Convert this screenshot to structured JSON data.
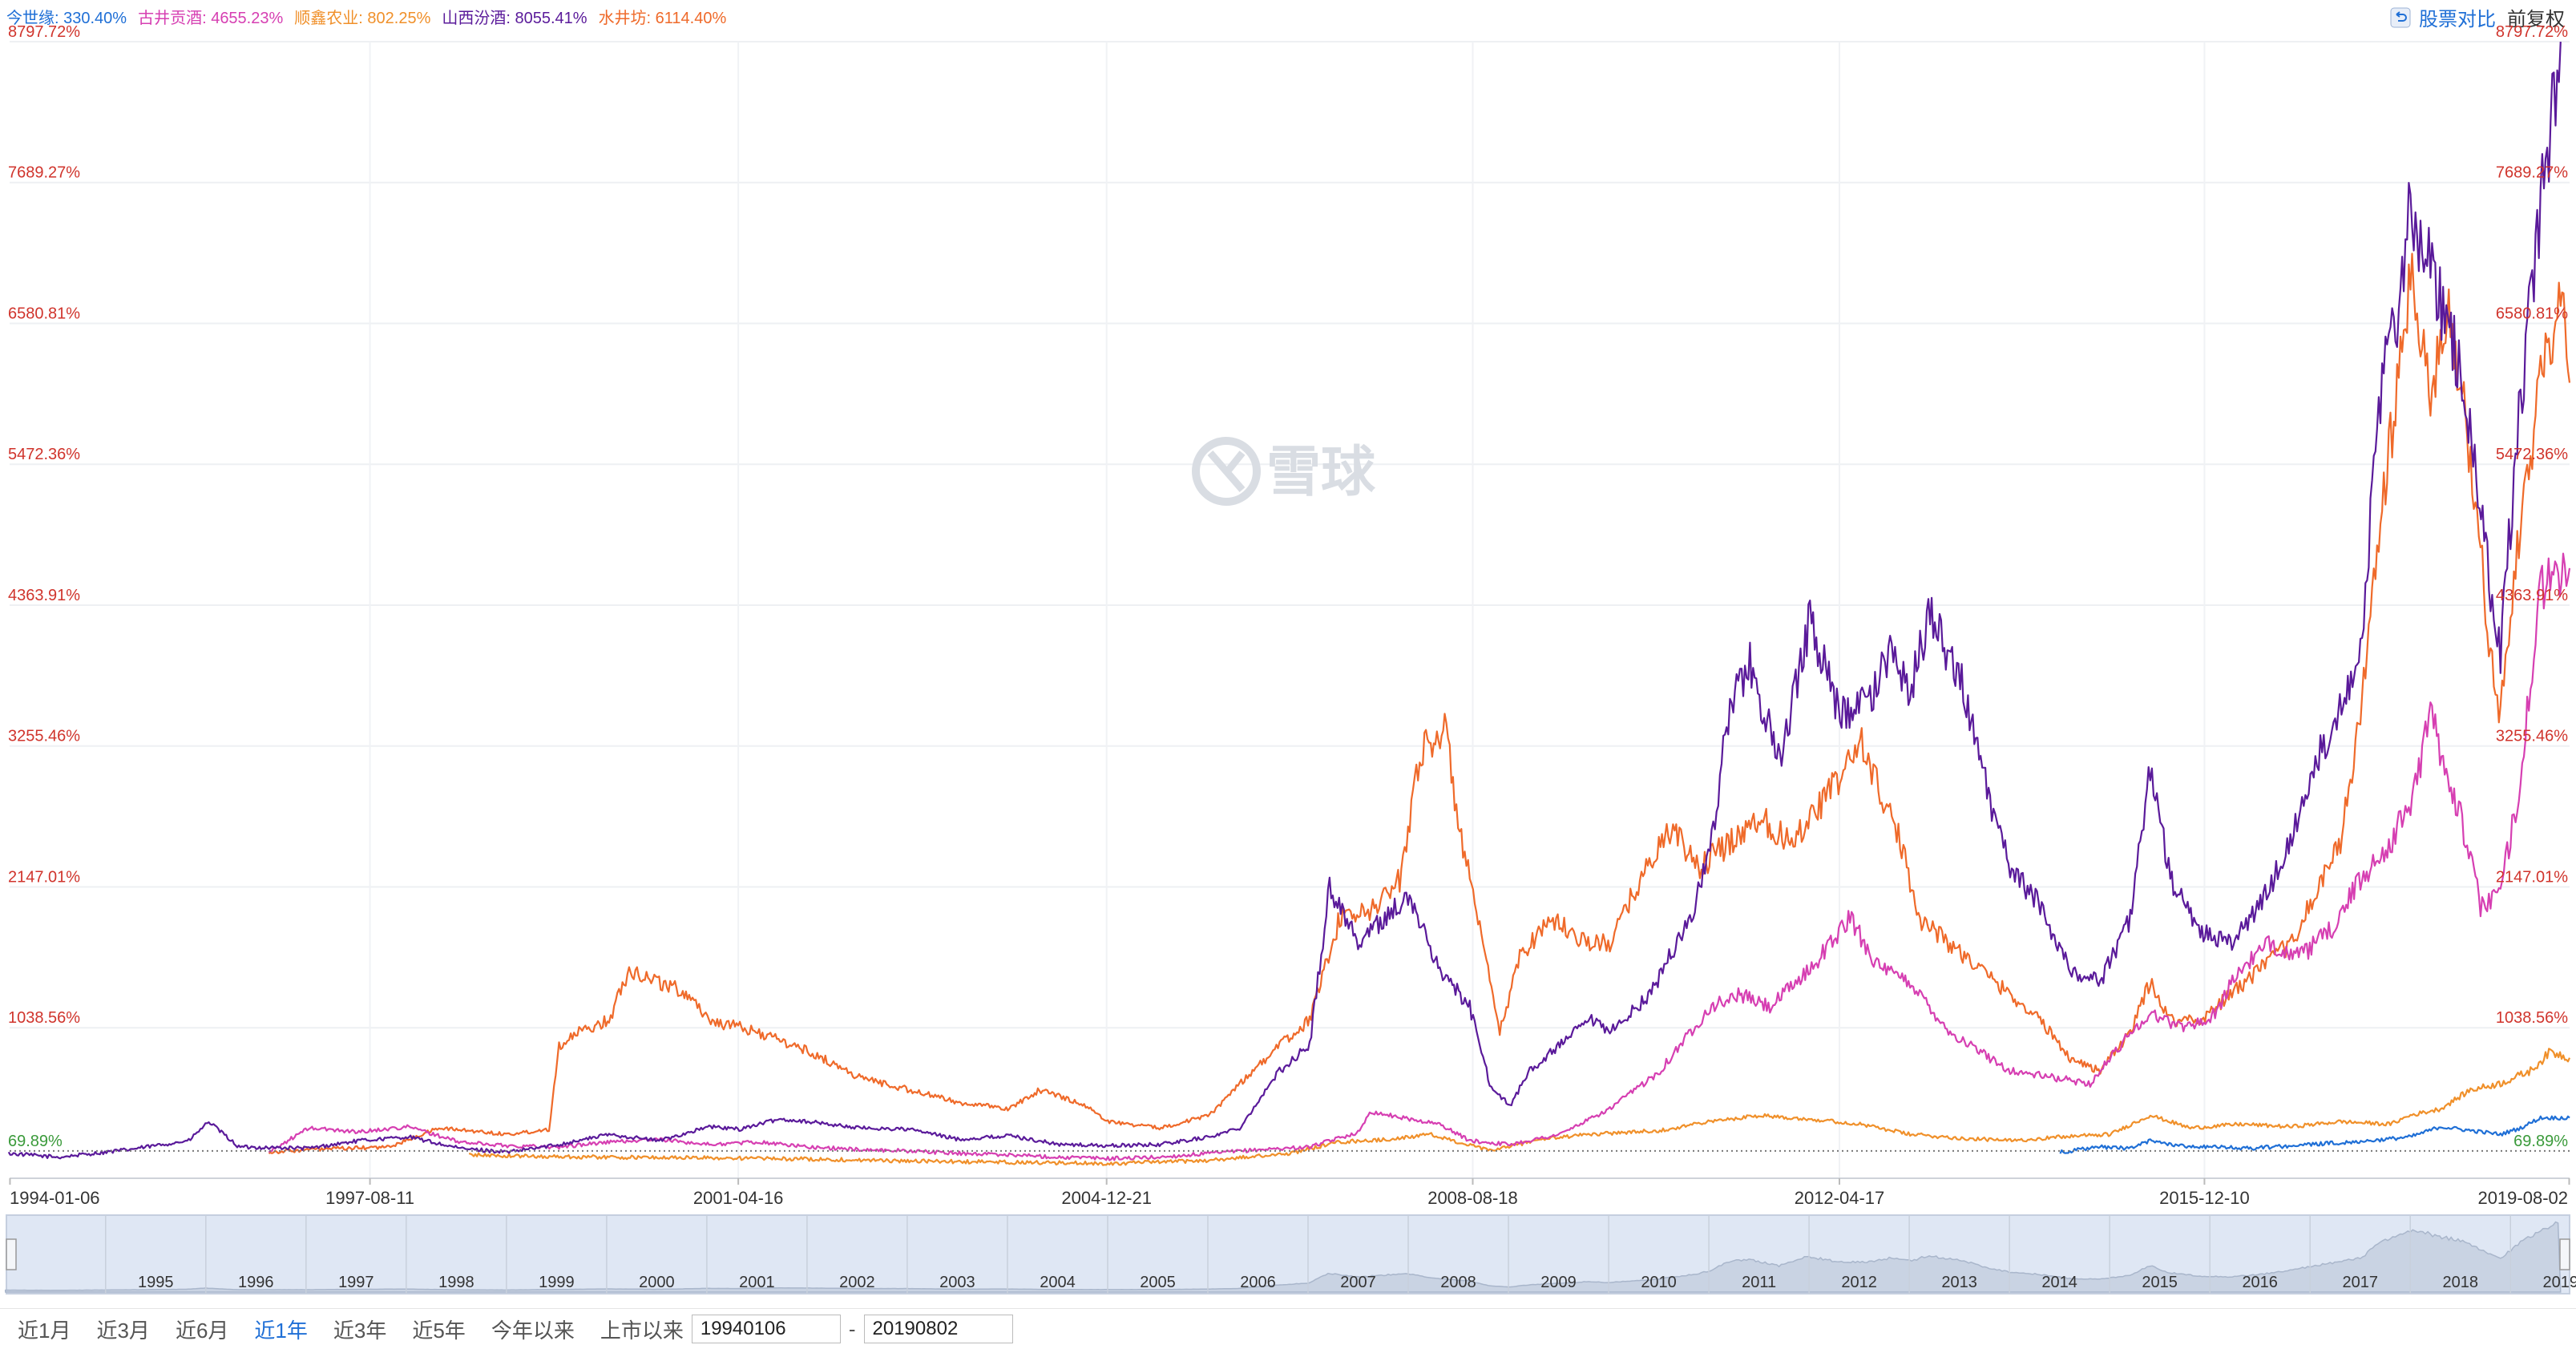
{
  "legend": [
    {
      "label": "今世缘: 330.40%",
      "color": "#1f6fd6"
    },
    {
      "label": "古井贡酒: 4655.23%",
      "color": "#d63fb2"
    },
    {
      "label": "顺鑫农业: 802.25%",
      "color": "#f0902a"
    },
    {
      "label": "山西汾酒: 8055.41%",
      "color": "#5a1a9a"
    },
    {
      "label": "水井坊: 6114.40%",
      "color": "#ef6a2a"
    }
  ],
  "toolbar": {
    "compare_label": "股票对比",
    "adjust_label": "前复权"
  },
  "watermark": "雪球",
  "range_buttons": [
    "近1月",
    "近3月",
    "近6月",
    "近1年",
    "近3年",
    "近5年",
    "今年以来",
    "上市以来"
  ],
  "active_range": "近1年",
  "date_from": "19940106",
  "date_separator": "-",
  "date_to": "20190802",
  "navigator_years": [
    "1995",
    "1996",
    "1997",
    "1998",
    "1999",
    "2000",
    "2001",
    "2002",
    "2003",
    "2004",
    "2005",
    "2006",
    "2007",
    "2008",
    "2009",
    "2010",
    "2011",
    "2012",
    "2013",
    "2014",
    "2015",
    "2016",
    "2017",
    "2018",
    "2019"
  ],
  "chart_data": {
    "type": "line",
    "y_unit": "%",
    "y_ticks": [
      "8797.72%",
      "7689.27%",
      "6580.81%",
      "5472.36%",
      "4363.91%",
      "3255.46%",
      "2147.01%",
      "1038.56%",
      "69.89%"
    ],
    "ylim": [
      -70,
      8797.72
    ],
    "baseline": 69.89,
    "x_ticks": [
      "1994-01-06",
      "1997-08-11",
      "2001-04-16",
      "2004-12-21",
      "2008-08-18",
      "2012-04-17",
      "2015-12-10",
      "2019-08-02"
    ],
    "xlim": [
      1994.01,
      2019.59
    ],
    "series": [
      {
        "name": "山西汾酒",
        "color": "#5a1a9a",
        "points": [
          [
            1994.0,
            50
          ],
          [
            1994.5,
            20
          ],
          [
            1995.2,
            80
          ],
          [
            1995.8,
            150
          ],
          [
            1996.0,
            300
          ],
          [
            1996.3,
            100
          ],
          [
            1997.0,
            90
          ],
          [
            1997.5,
            150
          ],
          [
            1998.0,
            180
          ],
          [
            1998.5,
            90
          ],
          [
            1999.0,
            60
          ],
          [
            1999.5,
            120
          ],
          [
            2000.0,
            200
          ],
          [
            2000.5,
            150
          ],
          [
            2001.0,
            260
          ],
          [
            2001.3,
            240
          ],
          [
            2001.7,
            320
          ],
          [
            2002.0,
            300
          ],
          [
            2002.5,
            250
          ],
          [
            2003.0,
            240
          ],
          [
            2003.5,
            160
          ],
          [
            2004.0,
            190
          ],
          [
            2004.5,
            120
          ],
          [
            2005.0,
            110
          ],
          [
            2005.5,
            120
          ],
          [
            2006.0,
            180
          ],
          [
            2006.3,
            250
          ],
          [
            2006.7,
            700
          ],
          [
            2007.0,
            900
          ],
          [
            2007.2,
            2150
          ],
          [
            2007.5,
            1700
          ],
          [
            2007.8,
            1950
          ],
          [
            2008.0,
            2050
          ],
          [
            2008.3,
            1500
          ],
          [
            2008.6,
            1200
          ],
          [
            2008.8,
            600
          ],
          [
            2009.0,
            420
          ],
          [
            2009.2,
            700
          ],
          [
            2009.5,
            900
          ],
          [
            2009.8,
            1100
          ],
          [
            2010.0,
            1000
          ],
          [
            2010.4,
            1300
          ],
          [
            2010.8,
            1900
          ],
          [
            2011.0,
            2400
          ],
          [
            2011.2,
            3600
          ],
          [
            2011.4,
            3900
          ],
          [
            2011.7,
            3100
          ],
          [
            2012.0,
            4250
          ],
          [
            2012.3,
            3500
          ],
          [
            2012.6,
            3600
          ],
          [
            2012.8,
            4000
          ],
          [
            2013.0,
            3700
          ],
          [
            2013.2,
            4300
          ],
          [
            2013.5,
            3800
          ],
          [
            2013.8,
            2800
          ],
          [
            2014.0,
            2300
          ],
          [
            2014.3,
            2000
          ],
          [
            2014.6,
            1500
          ],
          [
            2014.9,
            1400
          ],
          [
            2015.2,
            1900
          ],
          [
            2015.4,
            3100
          ],
          [
            2015.6,
            2200
          ],
          [
            2015.9,
            1800
          ],
          [
            2016.2,
            1700
          ],
          [
            2016.5,
            2000
          ],
          [
            2016.8,
            2500
          ],
          [
            2017.0,
            3000
          ],
          [
            2017.2,
            3400
          ],
          [
            2017.5,
            4000
          ],
          [
            2017.7,
            6000
          ],
          [
            2017.9,
            6800
          ],
          [
            2018.0,
            7500
          ],
          [
            2018.2,
            7000
          ],
          [
            2018.5,
            6200
          ],
          [
            2018.8,
            4500
          ],
          [
            2018.9,
            4000
          ],
          [
            2019.1,
            6000
          ],
          [
            2019.3,
            7500
          ],
          [
            2019.5,
            8797
          ]
        ]
      },
      {
        "name": "水井坊",
        "color": "#ef6a2a",
        "points": [
          [
            1996.6,
            60
          ],
          [
            1997.0,
            80
          ],
          [
            1997.8,
            100
          ],
          [
            1998.3,
            250
          ],
          [
            1999.0,
            200
          ],
          [
            1999.4,
            240
          ],
          [
            1999.5,
            900
          ],
          [
            1999.7,
            1000
          ],
          [
            2000.0,
            1100
          ],
          [
            2000.2,
            1500
          ],
          [
            2000.5,
            1400
          ],
          [
            2000.8,
            1300
          ],
          [
            2001.0,
            1100
          ],
          [
            2001.5,
            1000
          ],
          [
            2002.0,
            850
          ],
          [
            2002.5,
            650
          ],
          [
            2003.0,
            550
          ],
          [
            2003.5,
            450
          ],
          [
            2004.0,
            400
          ],
          [
            2004.3,
            550
          ],
          [
            2004.7,
            450
          ],
          [
            2005.0,
            300
          ],
          [
            2005.5,
            250
          ],
          [
            2006.0,
            350
          ],
          [
            2006.3,
            600
          ],
          [
            2006.7,
            900
          ],
          [
            2007.0,
            1100
          ],
          [
            2007.3,
            1900
          ],
          [
            2007.6,
            1950
          ],
          [
            2007.9,
            2200
          ],
          [
            2008.1,
            3200
          ],
          [
            2008.35,
            3400
          ],
          [
            2008.5,
            2600
          ],
          [
            2008.7,
            1800
          ],
          [
            2008.9,
            1000
          ],
          [
            2009.1,
            1600
          ],
          [
            2009.4,
            1900
          ],
          [
            2009.8,
            1700
          ],
          [
            2010.0,
            1700
          ],
          [
            2010.3,
            2200
          ],
          [
            2010.6,
            2600
          ],
          [
            2010.9,
            2300
          ],
          [
            2011.2,
            2500
          ],
          [
            2011.5,
            2700
          ],
          [
            2011.8,
            2500
          ],
          [
            2012.0,
            2700
          ],
          [
            2012.3,
            3000
          ],
          [
            2012.5,
            3300
          ],
          [
            2012.7,
            2900
          ],
          [
            2012.9,
            2500
          ],
          [
            2013.1,
            1900
          ],
          [
            2013.4,
            1700
          ],
          [
            2013.7,
            1500
          ],
          [
            2014.0,
            1300
          ],
          [
            2014.3,
            1100
          ],
          [
            2014.6,
            800
          ],
          [
            2014.9,
            700
          ],
          [
            2015.2,
            1000
          ],
          [
            2015.4,
            1400
          ],
          [
            2015.6,
            1100
          ],
          [
            2015.9,
            1100
          ],
          [
            2016.2,
            1300
          ],
          [
            2016.5,
            1500
          ],
          [
            2016.8,
            1700
          ],
          [
            2017.0,
            2000
          ],
          [
            2017.3,
            2500
          ],
          [
            2017.5,
            3500
          ],
          [
            2017.7,
            5000
          ],
          [
            2017.9,
            6300
          ],
          [
            2018.0,
            6900
          ],
          [
            2018.2,
            6000
          ],
          [
            2018.4,
            6700
          ],
          [
            2018.6,
            5500
          ],
          [
            2018.8,
            4000
          ],
          [
            2018.9,
            3500
          ],
          [
            2019.1,
            5000
          ],
          [
            2019.3,
            6100
          ],
          [
            2019.5,
            6900
          ],
          [
            2019.59,
            6114
          ]
        ]
      },
      {
        "name": "古井贡酒",
        "color": "#d63fb2",
        "points": [
          [
            1996.6,
            60
          ],
          [
            1997.0,
            250
          ],
          [
            1997.5,
            220
          ],
          [
            1998.0,
            260
          ],
          [
            1998.5,
            140
          ],
          [
            1999.0,
            110
          ],
          [
            1999.5,
            100
          ],
          [
            2000.0,
            140
          ],
          [
            2000.5,
            160
          ],
          [
            2001.0,
            120
          ],
          [
            2001.5,
            140
          ],
          [
            2002.0,
            100
          ],
          [
            2002.5,
            80
          ],
          [
            2003.0,
            70
          ],
          [
            2003.5,
            50
          ],
          [
            2004.0,
            40
          ],
          [
            2004.5,
            20
          ],
          [
            2005.0,
            10
          ],
          [
            2005.5,
            20
          ],
          [
            2006.0,
            50
          ],
          [
            2006.5,
            80
          ],
          [
            2007.0,
            100
          ],
          [
            2007.5,
            220
          ],
          [
            2007.6,
            380
          ],
          [
            2008.0,
            320
          ],
          [
            2008.3,
            280
          ],
          [
            2008.6,
            150
          ],
          [
            2009.0,
            120
          ],
          [
            2009.5,
            200
          ],
          [
            2010.0,
            400
          ],
          [
            2010.5,
            700
          ],
          [
            2011.0,
            1200
          ],
          [
            2011.3,
            1300
          ],
          [
            2011.6,
            1200
          ],
          [
            2012.0,
            1500
          ],
          [
            2012.4,
            1900
          ],
          [
            2012.7,
            1500
          ],
          [
            2013.0,
            1400
          ],
          [
            2013.4,
            1000
          ],
          [
            2013.8,
            800
          ],
          [
            2014.0,
            700
          ],
          [
            2014.4,
            650
          ],
          [
            2014.8,
            600
          ],
          [
            2015.2,
            1000
          ],
          [
            2015.4,
            1150
          ],
          [
            2015.7,
            1050
          ],
          [
            2016.0,
            1100
          ],
          [
            2016.3,
            1500
          ],
          [
            2016.6,
            1700
          ],
          [
            2016.9,
            1600
          ],
          [
            2017.2,
            1800
          ],
          [
            2017.5,
            2200
          ],
          [
            2017.8,
            2500
          ],
          [
            2018.0,
            2800
          ],
          [
            2018.2,
            3500
          ],
          [
            2018.5,
            2700
          ],
          [
            2018.7,
            2000
          ],
          [
            2018.9,
            2100
          ],
          [
            2019.1,
            3000
          ],
          [
            2019.3,
            4500
          ],
          [
            2019.59,
            4655
          ]
        ]
      },
      {
        "name": "顺鑫农业",
        "color": "#f0902a",
        "points": [
          [
            1998.6,
            40
          ],
          [
            1999.0,
            30
          ],
          [
            2000.0,
            20
          ],
          [
            2001.0,
            15
          ],
          [
            2002.0,
            5
          ],
          [
            2003.0,
            -10
          ],
          [
            2004.0,
            -20
          ],
          [
            2005.0,
            -30
          ],
          [
            2006.0,
            -5
          ],
          [
            2006.8,
            50
          ],
          [
            2007.3,
            140
          ],
          [
            2007.8,
            160
          ],
          [
            2008.2,
            200
          ],
          [
            2008.8,
            70
          ],
          [
            2009.3,
            160
          ],
          [
            2009.8,
            200
          ],
          [
            2010.5,
            230
          ],
          [
            2011.0,
            300
          ],
          [
            2011.5,
            350
          ],
          [
            2012.0,
            320
          ],
          [
            2012.5,
            280
          ],
          [
            2013.0,
            200
          ],
          [
            2013.5,
            170
          ],
          [
            2014.0,
            150
          ],
          [
            2014.5,
            180
          ],
          [
            2015.0,
            200
          ],
          [
            2015.4,
            350
          ],
          [
            2015.8,
            250
          ],
          [
            2016.3,
            280
          ],
          [
            2016.8,
            260
          ],
          [
            2017.3,
            300
          ],
          [
            2017.8,
            280
          ],
          [
            2018.0,
            350
          ],
          [
            2018.3,
            400
          ],
          [
            2018.6,
            550
          ],
          [
            2018.9,
            600
          ],
          [
            2019.2,
            700
          ],
          [
            2019.4,
            850
          ],
          [
            2019.59,
            802
          ]
        ]
      },
      {
        "name": "今世缘",
        "color": "#1f6fd6",
        "points": [
          [
            2014.5,
            60
          ],
          [
            2014.9,
            100
          ],
          [
            2015.2,
            90
          ],
          [
            2015.4,
            150
          ],
          [
            2015.7,
            110
          ],
          [
            2016.0,
            100
          ],
          [
            2016.4,
            90
          ],
          [
            2016.8,
            110
          ],
          [
            2017.2,
            130
          ],
          [
            2017.6,
            150
          ],
          [
            2018.0,
            180
          ],
          [
            2018.3,
            260
          ],
          [
            2018.6,
            230
          ],
          [
            2018.9,
            200
          ],
          [
            2019.1,
            250
          ],
          [
            2019.3,
            330
          ],
          [
            2019.59,
            330
          ]
        ]
      }
    ]
  }
}
